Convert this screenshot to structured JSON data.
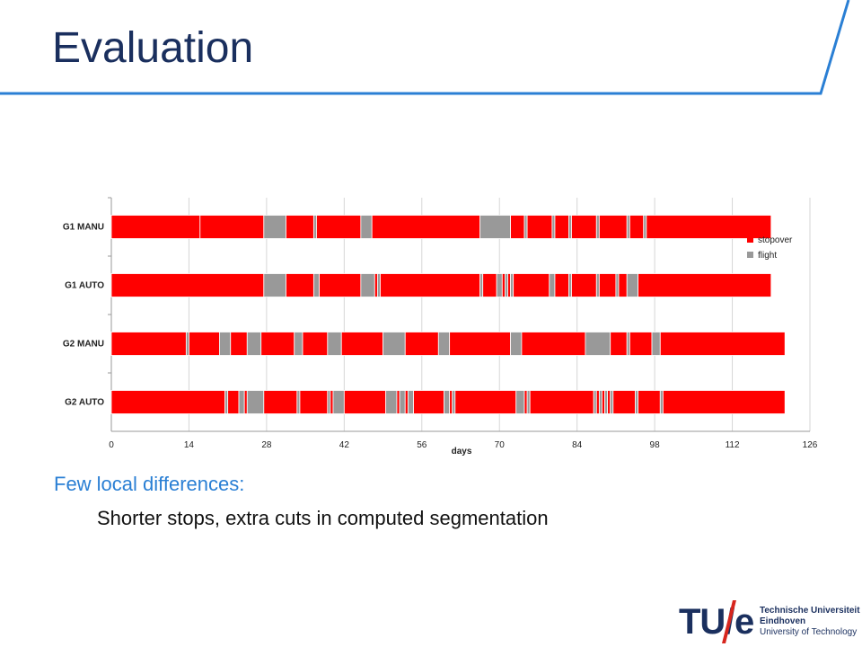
{
  "slide": {
    "title": "Evaluation",
    "bullets": [
      "Few local differences:",
      "Shorter stops, extra cuts in computed segmentation"
    ]
  },
  "logo": {
    "mark_tu": "TU/",
    "mark_e": "e",
    "lines": [
      "Technische Universiteit",
      "Eindhoven",
      "University of Technology"
    ]
  },
  "colors": {
    "title": "#1a2f5e",
    "accent_line": "#2a7fd4",
    "stopover": "#ff0000",
    "flight": "#999999"
  },
  "chart_data": {
    "type": "bar",
    "orientation": "horizontal-timeline",
    "xlabel": "days",
    "xlim": [
      0,
      126
    ],
    "xticks": [
      0,
      14,
      28,
      42,
      56,
      70,
      84,
      98,
      112,
      126
    ],
    "grid": true,
    "legend": {
      "position": "top-right",
      "entries": [
        "stopover",
        "flight"
      ]
    },
    "rows": [
      {
        "label": "G1 MANU",
        "segments": [
          {
            "type": "stopover",
            "start": 0,
            "end": 16
          },
          {
            "type": "stopover",
            "start": 16,
            "end": 27.5
          },
          {
            "type": "flight",
            "start": 27.5,
            "end": 31.5
          },
          {
            "type": "stopover",
            "start": 31.5,
            "end": 36.5
          },
          {
            "type": "flight",
            "start": 36.5,
            "end": 37
          },
          {
            "type": "stopover",
            "start": 37,
            "end": 45
          },
          {
            "type": "flight",
            "start": 45,
            "end": 47
          },
          {
            "type": "stopover",
            "start": 47,
            "end": 66.5
          },
          {
            "type": "flight",
            "start": 66.5,
            "end": 72
          },
          {
            "type": "stopover",
            "start": 72,
            "end": 74.5
          },
          {
            "type": "flight",
            "start": 74.5,
            "end": 75
          },
          {
            "type": "stopover",
            "start": 75,
            "end": 79.5
          },
          {
            "type": "flight",
            "start": 79.5,
            "end": 80
          },
          {
            "type": "stopover",
            "start": 80,
            "end": 82.5
          },
          {
            "type": "flight",
            "start": 82.5,
            "end": 83
          },
          {
            "type": "stopover",
            "start": 83,
            "end": 87.5
          },
          {
            "type": "flight",
            "start": 87.5,
            "end": 88
          },
          {
            "type": "stopover",
            "start": 88,
            "end": 93
          },
          {
            "type": "flight",
            "start": 93,
            "end": 93.5
          },
          {
            "type": "stopover",
            "start": 93.5,
            "end": 96
          },
          {
            "type": "flight",
            "start": 96,
            "end": 96.5
          },
          {
            "type": "stopover",
            "start": 96.5,
            "end": 119
          }
        ]
      },
      {
        "label": "G1 AUTO",
        "segments": [
          {
            "type": "stopover",
            "start": 0,
            "end": 27.5
          },
          {
            "type": "flight",
            "start": 27.5,
            "end": 31.5
          },
          {
            "type": "stopover",
            "start": 31.5,
            "end": 36.5
          },
          {
            "type": "flight",
            "start": 36.5,
            "end": 37.5
          },
          {
            "type": "stopover",
            "start": 37.5,
            "end": 45
          },
          {
            "type": "flight",
            "start": 45,
            "end": 47.5
          },
          {
            "type": "stopover",
            "start": 47.5,
            "end": 48
          },
          {
            "type": "flight",
            "start": 48,
            "end": 48.5
          },
          {
            "type": "stopover",
            "start": 48.5,
            "end": 66.5
          },
          {
            "type": "flight",
            "start": 66.5,
            "end": 67
          },
          {
            "type": "stopover",
            "start": 67,
            "end": 69.5
          },
          {
            "type": "flight",
            "start": 69.5,
            "end": 70.5
          },
          {
            "type": "stopover",
            "start": 70.5,
            "end": 71
          },
          {
            "type": "flight",
            "start": 71,
            "end": 71.5
          },
          {
            "type": "stopover",
            "start": 71.5,
            "end": 72
          },
          {
            "type": "flight",
            "start": 72,
            "end": 72.5
          },
          {
            "type": "stopover",
            "start": 72.5,
            "end": 79
          },
          {
            "type": "flight",
            "start": 79,
            "end": 80
          },
          {
            "type": "stopover",
            "start": 80,
            "end": 82.5
          },
          {
            "type": "flight",
            "start": 82.5,
            "end": 83
          },
          {
            "type": "stopover",
            "start": 83,
            "end": 87.5
          },
          {
            "type": "flight",
            "start": 87.5,
            "end": 88
          },
          {
            "type": "stopover",
            "start": 88,
            "end": 91
          },
          {
            "type": "flight",
            "start": 91,
            "end": 91.5
          },
          {
            "type": "stopover",
            "start": 91.5,
            "end": 93
          },
          {
            "type": "flight",
            "start": 93,
            "end": 95
          },
          {
            "type": "stopover",
            "start": 95,
            "end": 119
          }
        ]
      },
      {
        "label": "G2 MANU",
        "segments": [
          {
            "type": "stopover",
            "start": 0,
            "end": 13.5
          },
          {
            "type": "flight",
            "start": 13.5,
            "end": 14
          },
          {
            "type": "stopover",
            "start": 14,
            "end": 19.5
          },
          {
            "type": "flight",
            "start": 19.5,
            "end": 21.5
          },
          {
            "type": "stopover",
            "start": 21.5,
            "end": 24.5
          },
          {
            "type": "flight",
            "start": 24.5,
            "end": 27
          },
          {
            "type": "stopover",
            "start": 27,
            "end": 33
          },
          {
            "type": "flight",
            "start": 33,
            "end": 34.5
          },
          {
            "type": "stopover",
            "start": 34.5,
            "end": 39
          },
          {
            "type": "flight",
            "start": 39,
            "end": 41.5
          },
          {
            "type": "stopover",
            "start": 41.5,
            "end": 49
          },
          {
            "type": "flight",
            "start": 49,
            "end": 53
          },
          {
            "type": "stopover",
            "start": 53,
            "end": 59
          },
          {
            "type": "flight",
            "start": 59,
            "end": 61
          },
          {
            "type": "stopover",
            "start": 61,
            "end": 72
          },
          {
            "type": "flight",
            "start": 72,
            "end": 74
          },
          {
            "type": "stopover",
            "start": 74,
            "end": 85.5
          },
          {
            "type": "flight",
            "start": 85.5,
            "end": 90
          },
          {
            "type": "stopover",
            "start": 90,
            "end": 93
          },
          {
            "type": "flight",
            "start": 93,
            "end": 93.5
          },
          {
            "type": "stopover",
            "start": 93.5,
            "end": 97.5
          },
          {
            "type": "flight",
            "start": 97.5,
            "end": 99
          },
          {
            "type": "stopover",
            "start": 99,
            "end": 121.5
          }
        ]
      },
      {
        "label": "G2 AUTO",
        "segments": [
          {
            "type": "stopover",
            "start": 0,
            "end": 20.5
          },
          {
            "type": "flight",
            "start": 20.5,
            "end": 21
          },
          {
            "type": "stopover",
            "start": 21,
            "end": 23
          },
          {
            "type": "flight",
            "start": 23,
            "end": 24
          },
          {
            "type": "stopover",
            "start": 24,
            "end": 24.5
          },
          {
            "type": "flight",
            "start": 24.5,
            "end": 27.5
          },
          {
            "type": "stopover",
            "start": 27.5,
            "end": 33.5
          },
          {
            "type": "flight",
            "start": 33.5,
            "end": 34
          },
          {
            "type": "stopover",
            "start": 34,
            "end": 39
          },
          {
            "type": "flight",
            "start": 39,
            "end": 39.5
          },
          {
            "type": "stopover",
            "start": 39.5,
            "end": 40
          },
          {
            "type": "flight",
            "start": 40,
            "end": 42
          },
          {
            "type": "stopover",
            "start": 42,
            "end": 49.5
          },
          {
            "type": "flight",
            "start": 49.5,
            "end": 51.5
          },
          {
            "type": "stopover",
            "start": 51.5,
            "end": 52
          },
          {
            "type": "flight",
            "start": 52,
            "end": 53
          },
          {
            "type": "stopover",
            "start": 53,
            "end": 53.5
          },
          {
            "type": "flight",
            "start": 53.5,
            "end": 54.5
          },
          {
            "type": "stopover",
            "start": 54.5,
            "end": 60
          },
          {
            "type": "flight",
            "start": 60,
            "end": 61
          },
          {
            "type": "stopover",
            "start": 61,
            "end": 61.5
          },
          {
            "type": "flight",
            "start": 61.5,
            "end": 62
          },
          {
            "type": "stopover",
            "start": 62,
            "end": 73
          },
          {
            "type": "flight",
            "start": 73,
            "end": 74.5
          },
          {
            "type": "stopover",
            "start": 74.5,
            "end": 75
          },
          {
            "type": "flight",
            "start": 75,
            "end": 75.5
          },
          {
            "type": "stopover",
            "start": 75.5,
            "end": 87
          },
          {
            "type": "flight",
            "start": 87,
            "end": 87.5
          },
          {
            "type": "stopover",
            "start": 87.5,
            "end": 88
          },
          {
            "type": "flight",
            "start": 88,
            "end": 88.5
          },
          {
            "type": "stopover",
            "start": 88.5,
            "end": 89
          },
          {
            "type": "flight",
            "start": 89,
            "end": 89.5
          },
          {
            "type": "stopover",
            "start": 89.5,
            "end": 90
          },
          {
            "type": "flight",
            "start": 90,
            "end": 90.5
          },
          {
            "type": "stopover",
            "start": 90.5,
            "end": 94.5
          },
          {
            "type": "flight",
            "start": 94.5,
            "end": 95
          },
          {
            "type": "stopover",
            "start": 95,
            "end": 99
          },
          {
            "type": "flight",
            "start": 99,
            "end": 99.5
          },
          {
            "type": "stopover",
            "start": 99.5,
            "end": 121.5
          }
        ]
      }
    ]
  }
}
